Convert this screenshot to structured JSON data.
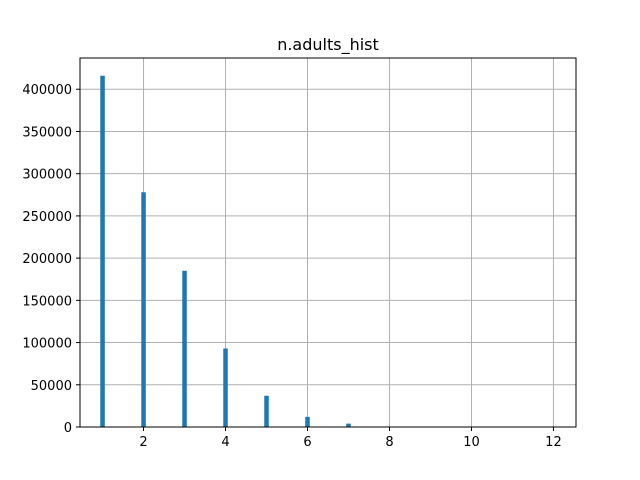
{
  "chart_data": {
    "type": "bar",
    "title": "n.adults_hist",
    "xlabel": "",
    "ylabel": "",
    "x": [
      1,
      2,
      3,
      4,
      5,
      6,
      7,
      8,
      9,
      10,
      11,
      12
    ],
    "values": [
      416000,
      278000,
      185000,
      93000,
      37000,
      12000,
      4000,
      300,
      0,
      0,
      0,
      0
    ],
    "bin_width": 0.11,
    "xlim": [
      0.45,
      12.55
    ],
    "ylim": [
      0,
      437000
    ],
    "x_ticks": [
      2,
      4,
      6,
      8,
      10,
      12
    ],
    "x_tick_labels": [
      "2",
      "4",
      "6",
      "8",
      "10",
      "12"
    ],
    "y_ticks": [
      0,
      50000,
      100000,
      150000,
      200000,
      250000,
      300000,
      350000,
      400000
    ],
    "y_tick_labels": [
      "0",
      "50000",
      "100000",
      "150000",
      "200000",
      "250000",
      "300000",
      "350000",
      "400000"
    ],
    "grid": true,
    "legend": "none",
    "bar_color": "#1f77b4"
  }
}
